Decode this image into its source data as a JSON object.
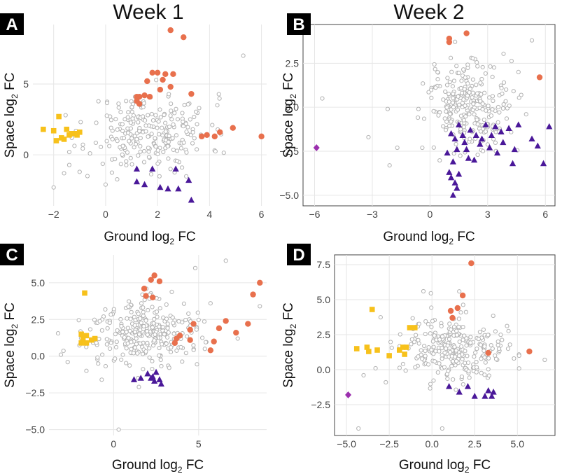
{
  "colors": {
    "grey": "#b3b3b3",
    "orange": "#e8704d",
    "yellow": "#f7c11b",
    "purple": "#4a1899",
    "magenta": "#9b2fae"
  },
  "column_titles": [
    "Week 1",
    "Week 2"
  ],
  "chart_data": [
    {
      "type": "scatter",
      "panel": "A",
      "week": "Week 1",
      "xlabel": "Ground log",
      "ylabel": "Space log",
      "xlabel_sub": "2",
      "xlabel_tail": " FC",
      "ylabel_sub": "2",
      "ylabel_tail": " FC",
      "xlim": [
        -2.8,
        6.2
      ],
      "ylim": [
        -3.6,
        9.2
      ],
      "xticks": [
        -2,
        0,
        2,
        4,
        6
      ],
      "xtick_labels": [
        "−2",
        "0",
        "2",
        "4",
        "6"
      ],
      "yticks": [
        0,
        5
      ],
      "ytick_labels": [
        "0",
        "5"
      ],
      "grey_cloud": {
        "n": 250,
        "cx": 1.7,
        "cy": 1.6,
        "sx": 1.15,
        "sy": 1.35,
        "seed": 11
      },
      "grey_extra": [
        [
          5.3,
          7.0
        ],
        [
          -1.6,
          -1.3
        ],
        [
          -2.0,
          -2.3
        ],
        [
          -1.0,
          -1.2
        ],
        [
          -0.7,
          -1.5
        ],
        [
          0.0,
          -2.1
        ],
        [
          2.5,
          -1.0
        ],
        [
          3.6,
          3.3
        ],
        [
          4.3,
          3.5
        ],
        [
          -1.3,
          1.2
        ],
        [
          -1.4,
          0.2
        ]
      ],
      "series": [
        {
          "name": "orange",
          "marker": "circle",
          "points": [
            [
              2.5,
              8.8
            ],
            [
              3.0,
              8.3
            ],
            [
              1.8,
              5.8
            ],
            [
              2.0,
              5.8
            ],
            [
              2.3,
              5.7
            ],
            [
              2.6,
              5.7
            ],
            [
              1.6,
              5.2
            ],
            [
              2.2,
              5.3
            ],
            [
              1.2,
              4.1
            ],
            [
              1.3,
              4.1
            ],
            [
              1.5,
              4.2
            ],
            [
              1.7,
              4.1
            ],
            [
              1.2,
              3.8
            ],
            [
              2.1,
              4.6
            ],
            [
              2.5,
              4.8
            ],
            [
              3.3,
              4.3
            ],
            [
              1.3,
              3.6
            ],
            [
              4.9,
              1.9
            ],
            [
              6.0,
              1.3
            ],
            [
              3.7,
              1.3
            ],
            [
              3.9,
              1.4
            ],
            [
              4.2,
              1.3
            ],
            [
              4.4,
              1.6
            ]
          ]
        },
        {
          "name": "yellow",
          "marker": "square",
          "points": [
            [
              -2.4,
              1.8
            ],
            [
              -2.0,
              1.7
            ],
            [
              -1.8,
              2.7
            ],
            [
              -1.5,
              1.8
            ],
            [
              -1.2,
              1.5
            ],
            [
              -1.4,
              1.4
            ],
            [
              -1.7,
              1.2
            ],
            [
              -1.1,
              1.4
            ],
            [
              -1.3,
              1.5
            ],
            [
              -1.9,
              1.0
            ],
            [
              -1.6,
              1.1
            ],
            [
              -1.0,
              1.6
            ]
          ]
        },
        {
          "name": "purple",
          "marker": "triangle",
          "points": [
            [
              1.2,
              -1.0
            ],
            [
              1.8,
              -1.0
            ],
            [
              2.7,
              -1.0
            ],
            [
              1.2,
              -1.9
            ],
            [
              1.5,
              -2.1
            ],
            [
              2.1,
              -2.3
            ],
            [
              2.4,
              -2.4
            ],
            [
              2.8,
              -2.4
            ],
            [
              3.2,
              -1.8
            ],
            [
              3.3,
              -3.2
            ]
          ]
        }
      ]
    },
    {
      "type": "scatter",
      "panel": "B",
      "week": "Week 2",
      "xlabel": "Ground log",
      "ylabel": "Space log",
      "xlabel_sub": "2",
      "xlabel_tail": " FC",
      "ylabel_sub": "2",
      "ylabel_tail": " FC",
      "xlim": [
        -6.6,
        6.5
      ],
      "ylim": [
        -5.6,
        4.7
      ],
      "xticks": [
        -6,
        -3,
        0,
        3,
        6
      ],
      "xtick_labels": [
        "−6",
        "−3",
        "0",
        "3",
        "6"
      ],
      "yticks": [
        -5.0,
        -2.5,
        0.0,
        2.5
      ],
      "ytick_labels": [
        "−5.0",
        "−2.5",
        "0.0",
        "2.5"
      ],
      "grey_cloud": {
        "n": 260,
        "cx": 1.9,
        "cy": 0.1,
        "sx": 1.05,
        "sy": 1.3,
        "seed": 27
      },
      "grey_extra": [
        [
          -5.6,
          0.5
        ],
        [
          -2.1,
          -3.3
        ],
        [
          -1.7,
          -2.3
        ],
        [
          -2.2,
          -0.1
        ],
        [
          5.3,
          3.8
        ],
        [
          -3.2,
          -1.7
        ],
        [
          -0.6,
          -0.1
        ],
        [
          -0.4,
          -2.3
        ],
        [
          4.6,
          2.0
        ],
        [
          5.0,
          -0.4
        ]
      ],
      "series": [
        {
          "name": "orange",
          "marker": "circle",
          "points": [
            [
              1.0,
              3.9
            ],
            [
              1.0,
              3.7
            ],
            [
              1.9,
              4.2
            ],
            [
              5.7,
              1.7
            ]
          ]
        },
        {
          "name": "purple",
          "marker": "triangle",
          "points": [
            [
              1.2,
              -5.0
            ],
            [
              1.4,
              -4.6
            ],
            [
              1.3,
              -4.3
            ],
            [
              1.1,
              -4.0
            ],
            [
              1.5,
              -3.8
            ],
            [
              1.0,
              -3.7
            ],
            [
              2.3,
              -3.0
            ],
            [
              2.0,
              -2.9
            ],
            [
              1.2,
              -3.1
            ],
            [
              4.3,
              -3.2
            ],
            [
              3.5,
              -2.6
            ],
            [
              3.1,
              -2.3
            ],
            [
              2.6,
              -2.1
            ],
            [
              1.8,
              -2.0
            ],
            [
              1.4,
              -2.4
            ],
            [
              5.3,
              -1.8
            ],
            [
              6.2,
              -1.1
            ],
            [
              5.6,
              -2.2
            ],
            [
              5.9,
              -3.2
            ],
            [
              4.1,
              -1.2
            ],
            [
              3.7,
              -1.4
            ],
            [
              4.4,
              -2.4
            ],
            [
              3.8,
              -2.0
            ],
            [
              2.9,
              -1.0
            ],
            [
              2.4,
              -1.6
            ],
            [
              1.7,
              -1.6
            ],
            [
              1.3,
              -1.8
            ],
            [
              0.9,
              -2.6
            ],
            [
              1.5,
              -1.0
            ],
            [
              2.1,
              -1.3
            ],
            [
              2.7,
              -1.8
            ],
            [
              3.2,
              -1.6
            ],
            [
              3.4,
              -1.1
            ],
            [
              4.6,
              -1.0
            ],
            [
              1.1,
              -1.5
            ],
            [
              1.9,
              -2.4
            ]
          ]
        },
        {
          "name": "magenta",
          "marker": "diamond",
          "points": [
            [
              -5.9,
              -2.3
            ]
          ]
        }
      ]
    },
    {
      "type": "scatter",
      "panel": "C",
      "week": "Week 1",
      "xlabel": "Ground log",
      "ylabel": "Space log",
      "xlabel_sub": "2",
      "xlabel_tail": " FC",
      "ylabel_sub": "2",
      "ylabel_tail": " FC",
      "xlim": [
        -3.8,
        9.0
      ],
      "ylim": [
        -5.4,
        6.9
      ],
      "xticks": [
        0,
        5
      ],
      "xtick_labels": [
        "0",
        "5"
      ],
      "yticks": [
        -5.0,
        -2.5,
        0.0,
        2.5,
        5.0
      ],
      "ytick_labels": [
        "−5.0",
        "−2.5",
        "0.0",
        "2.5",
        "5.0"
      ],
      "grey_cloud": {
        "n": 290,
        "cx": 1.8,
        "cy": 1.6,
        "sx": 1.7,
        "sy": 1.15,
        "seed": 43
      },
      "grey_extra": [
        [
          6.6,
          6.5
        ],
        [
          4.8,
          6.0
        ],
        [
          0.3,
          -5.0
        ],
        [
          -3.1,
          0.1
        ],
        [
          -2.7,
          -0.4
        ],
        [
          8.6,
          3.4
        ],
        [
          7.3,
          1.2
        ],
        [
          5.7,
          3.6
        ],
        [
          -1.6,
          -1.0
        ],
        [
          -0.7,
          -1.6
        ]
      ],
      "series": [
        {
          "name": "orange",
          "marker": "circle",
          "points": [
            [
              2.4,
              5.5
            ],
            [
              2.2,
              5.2
            ],
            [
              2.7,
              5.1
            ],
            [
              1.8,
              4.6
            ],
            [
              1.9,
              4.1
            ],
            [
              2.3,
              4.0
            ],
            [
              8.6,
              5.0
            ],
            [
              8.2,
              4.2
            ],
            [
              6.6,
              2.4
            ],
            [
              6.2,
              1.9
            ],
            [
              7.2,
              1.6
            ],
            [
              5.9,
              1.0
            ],
            [
              7.9,
              2.2
            ],
            [
              4.7,
              2.2
            ],
            [
              4.5,
              1.8
            ],
            [
              3.9,
              1.4
            ],
            [
              3.7,
              1.2
            ],
            [
              3.6,
              0.9
            ],
            [
              4.5,
              1.1
            ],
            [
              5.7,
              0.4
            ]
          ]
        },
        {
          "name": "yellow",
          "marker": "square",
          "points": [
            [
              -1.7,
              4.3
            ],
            [
              -1.9,
              1.5
            ],
            [
              -1.6,
              1.4
            ],
            [
              -1.3,
              1.1
            ],
            [
              -1.1,
              1.2
            ],
            [
              -1.6,
              0.9
            ],
            [
              -1.9,
              0.9
            ],
            [
              -1.8,
              1.2
            ]
          ]
        },
        {
          "name": "purple",
          "marker": "triangle",
          "points": [
            [
              1.2,
              -1.6
            ],
            [
              1.6,
              -1.5
            ],
            [
              2.0,
              -1.2
            ],
            [
              2.3,
              -1.4
            ],
            [
              2.4,
              -1.7
            ],
            [
              2.5,
              -1.1
            ],
            [
              2.7,
              -1.6
            ],
            [
              2.8,
              -1.9
            ],
            [
              2.2,
              -1.5
            ]
          ]
        }
      ]
    },
    {
      "type": "scatter",
      "panel": "D",
      "week": "Week 2",
      "xlabel": "Ground log",
      "ylabel": "Space log",
      "xlabel_sub": "2",
      "xlabel_tail": " FC",
      "ylabel_sub": "2",
      "ylabel_tail": " FC",
      "xlim": [
        -5.7,
        7.2
      ],
      "ylim": [
        -4.7,
        8.2
      ],
      "xticks": [
        -5.0,
        -2.5,
        0.0,
        2.5,
        5.0
      ],
      "xtick_labels": [
        "−5.0",
        "−2.5",
        "0.0",
        "2.5",
        "5.0"
      ],
      "yticks": [
        -2.5,
        0.0,
        2.5,
        5.0,
        7.5
      ],
      "ytick_labels": [
        "−2.5",
        "0.0",
        "2.5",
        "5.0",
        "7.5"
      ],
      "grey_cloud": {
        "n": 270,
        "cx": 1.3,
        "cy": 1.4,
        "sx": 1.5,
        "sy": 1.1,
        "seed": 59
      },
      "grey_extra": [
        [
          -4.3,
          -4.2
        ],
        [
          -0.5,
          5.6
        ],
        [
          0.6,
          -4.2
        ],
        [
          -4.0,
          -0.4
        ],
        [
          -3.3,
          0.1
        ],
        [
          6.6,
          0.7
        ],
        [
          5.1,
          1.0
        ],
        [
          4.8,
          0.8
        ],
        [
          -2.7,
          -0.9
        ]
      ],
      "series": [
        {
          "name": "orange",
          "marker": "circle",
          "points": [
            [
              2.3,
              7.6
            ],
            [
              1.8,
              5.3
            ],
            [
              1.5,
              4.4
            ],
            [
              1.1,
              4.2
            ],
            [
              1.2,
              3.7
            ],
            [
              5.7,
              1.3
            ],
            [
              3.3,
              1.2
            ]
          ]
        },
        {
          "name": "yellow",
          "marker": "square",
          "points": [
            [
              -3.5,
              4.3
            ],
            [
              -1.3,
              3.0
            ],
            [
              -1.0,
              3.0
            ],
            [
              -4.4,
              1.5
            ],
            [
              -3.8,
              1.6
            ],
            [
              -3.7,
              1.3
            ],
            [
              -3.2,
              1.4
            ],
            [
              -1.7,
              1.6
            ],
            [
              -1.5,
              1.6
            ],
            [
              -1.9,
              1.4
            ],
            [
              -1.6,
              1.1
            ],
            [
              -2.5,
              1.0
            ]
          ]
        },
        {
          "name": "purple",
          "marker": "triangle",
          "points": [
            [
              1.0,
              -1.2
            ],
            [
              2.1,
              -1.2
            ],
            [
              2.5,
              -1.9
            ],
            [
              3.1,
              -1.9
            ],
            [
              3.3,
              -1.5
            ],
            [
              3.5,
              -1.9
            ],
            [
              3.6,
              -1.6
            ],
            [
              1.6,
              -1.6
            ]
          ]
        },
        {
          "name": "magenta",
          "marker": "diamond",
          "points": [
            [
              -4.9,
              -1.8
            ]
          ]
        }
      ]
    }
  ]
}
